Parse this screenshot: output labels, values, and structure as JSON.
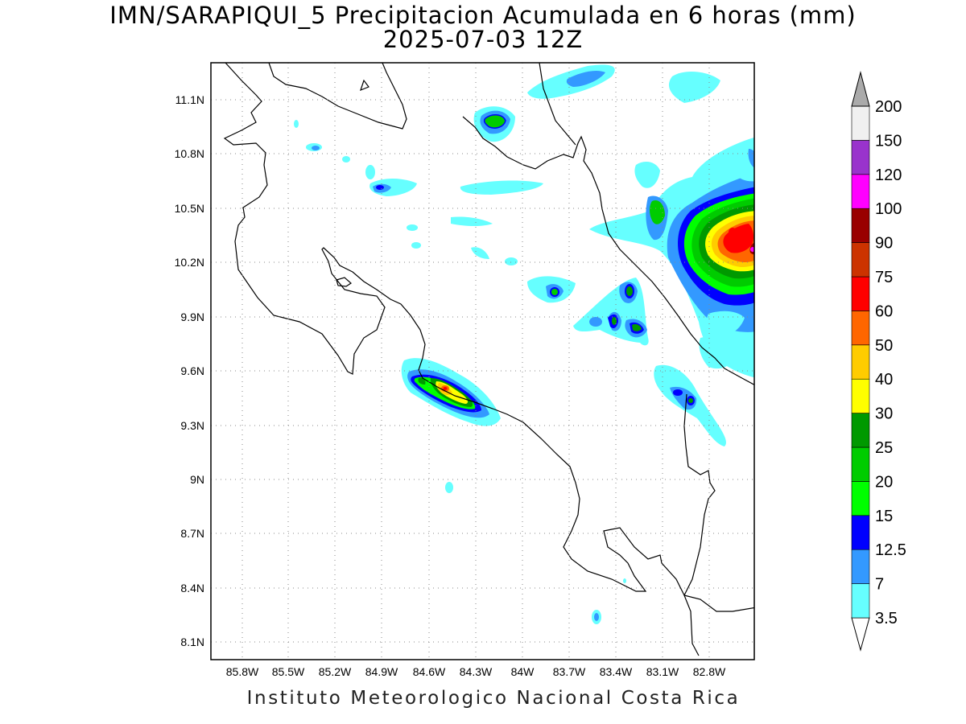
{
  "title": {
    "line1": "IMN/SARAPIQUI_5 Precipitacion Acumulada en 6 horas (mm)",
    "line2": "2025-07-03 12Z"
  },
  "map": {
    "lon_range": [
      -86.0,
      -82.6
    ],
    "lat_range": [
      8.0,
      11.3
    ],
    "lat_ticks": [
      "11.1N",
      "10.8N",
      "10.5N",
      "10.2N",
      "9.9N",
      "9.6N",
      "9.3N",
      "9N",
      "8.7N",
      "8.4N",
      "8.1N"
    ],
    "lon_ticks": [
      "85.8W",
      "85.5W",
      "85.2W",
      "84.9W",
      "84.6W",
      "84.3W",
      "84W",
      "83.7W",
      "83.4W",
      "83.1W",
      "82.8W"
    ],
    "grid": "dotted"
  },
  "colorbar": {
    "levels": [
      "3.5",
      "7",
      "12.5",
      "15",
      "20",
      "25",
      "30",
      "40",
      "50",
      "60",
      "75",
      "90",
      "100",
      "120",
      "150",
      "200"
    ],
    "colors": [
      "#66ffff",
      "#3399ff",
      "#0000ff",
      "#00ff00",
      "#00cc00",
      "#009900",
      "#ffff00",
      "#ffcc00",
      "#ff6600",
      "#ff0000",
      "#cc3300",
      "#990000",
      "#ff00ff",
      "#9933cc",
      "#f0f0f0",
      "#aaaaaa"
    ]
  },
  "credit": "Instituto Meteorologico Nacional Costa Rica"
}
